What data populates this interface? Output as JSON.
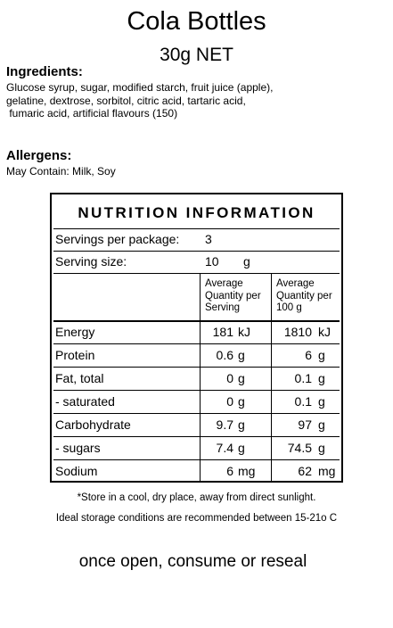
{
  "product": {
    "title": "Cola Bottles",
    "net": "30g NET"
  },
  "ingredients": {
    "heading": "Ingredients:",
    "lines": [
      "Glucose syrup, sugar, modified starch, fruit juice (apple),",
      "gelatine, dextrose, sorbitol, citric acid, tartaric acid,",
      " fumaric acid, artificial flavours (150)"
    ]
  },
  "allergens": {
    "heading": "Allergens:",
    "text": "May Contain: Milk, Soy"
  },
  "nutrition": {
    "title": "NUTRITION INFORMATION",
    "servings_label": "Servings per package:",
    "servings_value": "3",
    "serving_size_label": "Serving size:",
    "serving_size_value": "10",
    "serving_size_unit": "g",
    "col1_header": "Average\nQuantity per\nServing",
    "col2_header": "Average\nQuantity per\n100 g",
    "rows": [
      {
        "name": "Energy",
        "per_serving": "181",
        "per_serving_unit": "kJ",
        "per_100g": "1810",
        "per_100g_unit": "kJ"
      },
      {
        "name": "Protein",
        "per_serving": "0.6",
        "per_serving_unit": "g",
        "per_100g": "6",
        "per_100g_unit": "g"
      },
      {
        "name": "Fat, total",
        "per_serving": "0",
        "per_serving_unit": "g",
        "per_100g": "0.1",
        "per_100g_unit": "g"
      },
      {
        "name": "- saturated",
        "per_serving": "0",
        "per_serving_unit": "g",
        "per_100g": "0.1",
        "per_100g_unit": "g"
      },
      {
        "name": "Carbohydrate",
        "per_serving": "9.7",
        "per_serving_unit": "g",
        "per_100g": "97",
        "per_100g_unit": "g"
      },
      {
        "name": "- sugars",
        "per_serving": "7.4",
        "per_serving_unit": "g",
        "per_100g": "74.5",
        "per_100g_unit": "g"
      },
      {
        "name": "Sodium",
        "per_serving": "6",
        "per_serving_unit": "mg",
        "per_100g": "62",
        "per_100g_unit": "mg"
      }
    ]
  },
  "storage_note": "*Store in a cool, dry place, away from direct sunlight.",
  "storage_conditions": "Ideal storage conditions are recommended between 15-21o C",
  "reseal_note": "once open, consume or reseal"
}
